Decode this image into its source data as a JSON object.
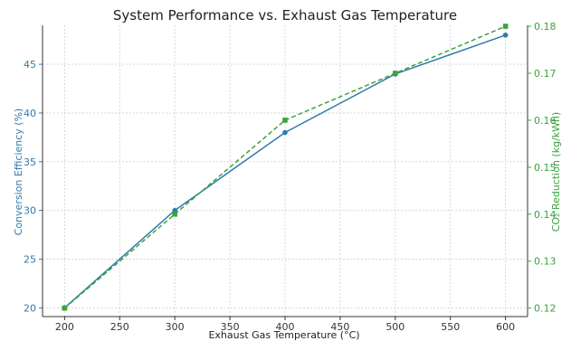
{
  "chart_data": {
    "type": "line",
    "title": "System Performance vs. Exhaust Gas Temperature",
    "xlabel": "Exhaust Gas Temperature (°C)",
    "x": [
      200,
      300,
      400,
      500,
      600
    ],
    "xlim": [
      180,
      620
    ],
    "xticks": [
      200,
      250,
      300,
      350,
      400,
      450,
      500,
      550,
      600
    ],
    "grid": true,
    "y_left": {
      "label": "Conversion Efficiency (%)",
      "lim": [
        19.1,
        49
      ],
      "ticks": [
        20,
        25,
        30,
        35,
        40,
        45
      ],
      "color": "#2f7bab"
    },
    "y_right": {
      "label": "CO₂ Reduction (kg/kWh)",
      "lim": [
        0.1182,
        0.1802
      ],
      "ticks": [
        0.12,
        0.13,
        0.14,
        0.15,
        0.16,
        0.17,
        0.18
      ],
      "color": "#3aa33a"
    },
    "series": [
      {
        "axis": "left",
        "values": [
          20,
          30,
          38,
          44,
          48
        ],
        "color": "#2f7bab",
        "style": "solid",
        "marker": "circle"
      },
      {
        "axis": "right",
        "values": [
          0.12,
          0.14,
          0.16,
          0.17,
          0.18
        ],
        "color": "#3aa33a",
        "style": "dashed",
        "marker": "square"
      }
    ]
  }
}
